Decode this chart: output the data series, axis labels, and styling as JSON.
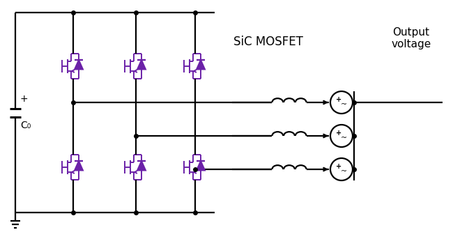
{
  "bg_color": "#ffffff",
  "line_color": "#000000",
  "switch_color": "#6b21a8",
  "title": "SiC MOSFET",
  "output_label": "Output\nvoltage",
  "cap_label": "C₀",
  "plus_label": "+",
  "fig_width": 6.5,
  "fig_height": 3.43,
  "dpi": 100,
  "lw": 1.6
}
